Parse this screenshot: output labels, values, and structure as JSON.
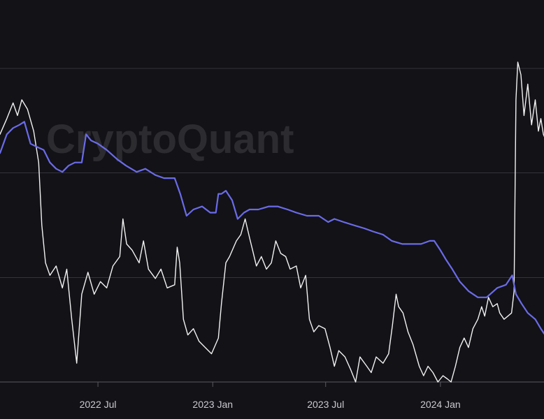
{
  "watermark": "CryptoQuant",
  "colors": {
    "background": "#121217",
    "grid": "#33333a",
    "axis": "#5a5a62",
    "price_line": "#f2f2f2",
    "metric_line": "#6b6bea"
  },
  "chart_data": {
    "type": "line",
    "title": "",
    "xlabel": "",
    "ylabel": "",
    "x_axis": {
      "type": "date",
      "range": [
        "2022-01-25",
        "2024-06-15"
      ],
      "tick_labels": [
        "2022 Jul",
        "2023 Jan",
        "2023 Jul",
        "2024 Jan"
      ],
      "tick_dates": [
        "2022-07-01",
        "2023-01-01",
        "2023-07-01",
        "2024-01-01"
      ]
    },
    "y_axis": {
      "visible_labels": false,
      "range": [
        0,
        100
      ],
      "gridlines": [
        33.3,
        66.7,
        100
      ]
    },
    "grid": true,
    "legend": "none",
    "series": [
      {
        "key": "price",
        "color": "#f2f2f2",
        "points": [
          [
            "2022-01-25",
            79
          ],
          [
            "2022-02-05",
            84
          ],
          [
            "2022-02-15",
            89
          ],
          [
            "2022-02-22",
            85
          ],
          [
            "2022-03-01",
            90
          ],
          [
            "2022-03-10",
            87
          ],
          [
            "2022-03-20",
            80
          ],
          [
            "2022-03-28",
            70
          ],
          [
            "2022-04-02",
            50
          ],
          [
            "2022-04-08",
            38
          ],
          [
            "2022-04-15",
            34
          ],
          [
            "2022-04-25",
            37
          ],
          [
            "2022-05-05",
            30
          ],
          [
            "2022-05-12",
            36
          ],
          [
            "2022-05-20",
            20
          ],
          [
            "2022-05-28",
            6
          ],
          [
            "2022-06-05",
            28
          ],
          [
            "2022-06-15",
            35
          ],
          [
            "2022-06-25",
            28
          ],
          [
            "2022-07-05",
            32
          ],
          [
            "2022-07-15",
            30
          ],
          [
            "2022-07-25",
            37
          ],
          [
            "2022-08-05",
            40
          ],
          [
            "2022-08-10",
            52
          ],
          [
            "2022-08-16",
            44
          ],
          [
            "2022-08-25",
            42
          ],
          [
            "2022-09-05",
            38
          ],
          [
            "2022-09-12",
            45
          ],
          [
            "2022-09-20",
            36
          ],
          [
            "2022-10-01",
            33
          ],
          [
            "2022-10-10",
            36
          ],
          [
            "2022-10-20",
            30
          ],
          [
            "2022-11-01",
            31
          ],
          [
            "2022-11-05",
            43
          ],
          [
            "2022-11-09",
            38
          ],
          [
            "2022-11-15",
            20
          ],
          [
            "2022-11-22",
            15
          ],
          [
            "2022-12-01",
            17
          ],
          [
            "2022-12-10",
            13
          ],
          [
            "2022-12-20",
            11
          ],
          [
            "2022-12-30",
            9
          ],
          [
            "2023-01-10",
            14
          ],
          [
            "2023-01-15",
            25
          ],
          [
            "2023-01-22",
            38
          ],
          [
            "2023-01-28",
            40
          ],
          [
            "2023-02-08",
            45
          ],
          [
            "2023-02-15",
            47
          ],
          [
            "2023-02-22",
            52
          ],
          [
            "2023-03-01",
            46
          ],
          [
            "2023-03-06",
            42
          ],
          [
            "2023-03-12",
            37
          ],
          [
            "2023-03-20",
            40
          ],
          [
            "2023-03-28",
            36
          ],
          [
            "2023-04-05",
            38
          ],
          [
            "2023-04-12",
            45
          ],
          [
            "2023-04-20",
            41
          ],
          [
            "2023-04-28",
            40
          ],
          [
            "2023-05-05",
            36
          ],
          [
            "2023-05-15",
            37
          ],
          [
            "2023-05-22",
            30
          ],
          [
            "2023-05-30",
            34
          ],
          [
            "2023-06-05",
            20
          ],
          [
            "2023-06-12",
            16
          ],
          [
            "2023-06-20",
            18
          ],
          [
            "2023-06-30",
            17
          ],
          [
            "2023-07-08",
            11
          ],
          [
            "2023-07-15",
            5
          ],
          [
            "2023-07-22",
            10
          ],
          [
            "2023-08-01",
            8
          ],
          [
            "2023-08-10",
            4
          ],
          [
            "2023-08-18",
            0
          ],
          [
            "2023-08-25",
            8
          ],
          [
            "2023-09-05",
            5
          ],
          [
            "2023-09-12",
            3
          ],
          [
            "2023-09-20",
            8
          ],
          [
            "2023-10-01",
            6
          ],
          [
            "2023-10-10",
            9
          ],
          [
            "2023-10-16",
            18
          ],
          [
            "2023-10-22",
            28
          ],
          [
            "2023-10-26",
            24
          ],
          [
            "2023-11-02",
            22
          ],
          [
            "2023-11-10",
            16
          ],
          [
            "2023-11-18",
            12
          ],
          [
            "2023-11-28",
            5
          ],
          [
            "2023-12-05",
            2
          ],
          [
            "2023-12-12",
            5
          ],
          [
            "2023-12-20",
            3
          ],
          [
            "2023-12-28",
            0
          ],
          [
            "2024-01-05",
            2
          ],
          [
            "2024-01-12",
            1
          ],
          [
            "2024-01-18",
            0
          ],
          [
            "2024-01-25",
            5
          ],
          [
            "2024-02-01",
            11
          ],
          [
            "2024-02-08",
            14
          ],
          [
            "2024-02-15",
            11
          ],
          [
            "2024-02-22",
            17
          ],
          [
            "2024-03-01",
            20
          ],
          [
            "2024-03-07",
            24
          ],
          [
            "2024-03-12",
            21
          ],
          [
            "2024-03-18",
            27
          ],
          [
            "2024-03-25",
            24
          ],
          [
            "2024-04-01",
            25
          ],
          [
            "2024-04-05",
            22
          ],
          [
            "2024-04-12",
            20
          ],
          [
            "2024-04-18",
            21
          ],
          [
            "2024-04-24",
            22
          ],
          [
            "2024-04-28",
            29
          ],
          [
            "2024-05-01",
            90
          ],
          [
            "2024-05-04",
            102
          ],
          [
            "2024-05-09",
            98
          ],
          [
            "2024-05-14",
            85
          ],
          [
            "2024-05-20",
            95
          ],
          [
            "2024-05-26",
            82
          ],
          [
            "2024-06-01",
            90
          ],
          [
            "2024-06-06",
            80
          ],
          [
            "2024-06-10",
            84
          ],
          [
            "2024-06-14",
            79
          ],
          [
            "2024-06-18",
            77
          ],
          [
            "2024-06-24",
            82
          ],
          [
            "2024-06-30",
            78
          ],
          [
            "2024-07-06",
            80
          ],
          [
            "2024-07-12",
            77
          ],
          [
            "2024-07-16",
            78
          ]
        ]
      },
      {
        "key": "metric",
        "color": "#6b6bea",
        "points": [
          [
            "2022-01-25",
            73
          ],
          [
            "2022-02-05",
            79
          ],
          [
            "2022-02-15",
            81
          ],
          [
            "2022-02-25",
            82
          ],
          [
            "2022-03-05",
            83
          ],
          [
            "2022-03-15",
            76
          ],
          [
            "2022-03-25",
            75
          ],
          [
            "2022-04-05",
            74
          ],
          [
            "2022-04-15",
            70
          ],
          [
            "2022-04-25",
            68
          ],
          [
            "2022-05-05",
            67
          ],
          [
            "2022-05-15",
            69
          ],
          [
            "2022-05-25",
            70
          ],
          [
            "2022-06-05",
            70
          ],
          [
            "2022-06-12",
            79
          ],
          [
            "2022-06-20",
            77
          ],
          [
            "2022-07-01",
            76
          ],
          [
            "2022-07-15",
            74
          ],
          [
            "2022-08-01",
            71
          ],
          [
            "2022-08-15",
            69
          ],
          [
            "2022-09-01",
            67
          ],
          [
            "2022-09-15",
            68
          ],
          [
            "2022-10-01",
            66
          ],
          [
            "2022-10-15",
            65
          ],
          [
            "2022-11-01",
            65
          ],
          [
            "2022-11-10",
            60
          ],
          [
            "2022-11-20",
            53
          ],
          [
            "2022-12-01",
            55
          ],
          [
            "2022-12-15",
            56
          ],
          [
            "2022-12-28",
            54
          ],
          [
            "2023-01-06",
            54
          ],
          [
            "2023-01-10",
            60
          ],
          [
            "2023-01-15",
            60
          ],
          [
            "2023-01-22",
            61
          ],
          [
            "2023-02-01",
            58
          ],
          [
            "2023-02-10",
            52
          ],
          [
            "2023-02-20",
            54
          ],
          [
            "2023-03-01",
            55
          ],
          [
            "2023-03-15",
            55
          ],
          [
            "2023-04-01",
            56
          ],
          [
            "2023-04-15",
            56
          ],
          [
            "2023-05-01",
            55
          ],
          [
            "2023-05-15",
            54
          ],
          [
            "2023-06-01",
            53
          ],
          [
            "2023-06-20",
            53
          ],
          [
            "2023-07-05",
            51
          ],
          [
            "2023-07-15",
            52
          ],
          [
            "2023-07-30",
            51
          ],
          [
            "2023-08-15",
            50
          ],
          [
            "2023-09-01",
            49
          ],
          [
            "2023-09-15",
            48
          ],
          [
            "2023-10-01",
            47
          ],
          [
            "2023-10-15",
            45
          ],
          [
            "2023-11-01",
            44
          ],
          [
            "2023-11-15",
            44
          ],
          [
            "2023-12-01",
            44
          ],
          [
            "2023-12-15",
            45
          ],
          [
            "2023-12-22",
            45
          ],
          [
            "2024-01-01",
            42
          ],
          [
            "2024-01-10",
            39
          ],
          [
            "2024-01-20",
            36
          ],
          [
            "2024-02-01",
            32
          ],
          [
            "2024-02-15",
            29
          ],
          [
            "2024-03-01",
            27
          ],
          [
            "2024-03-15",
            27
          ],
          [
            "2024-04-01",
            30
          ],
          [
            "2024-04-15",
            31
          ],
          [
            "2024-04-25",
            34
          ],
          [
            "2024-05-01",
            28
          ],
          [
            "2024-05-10",
            25
          ],
          [
            "2024-05-20",
            22
          ],
          [
            "2024-06-01",
            20
          ],
          [
            "2024-06-10",
            17
          ],
          [
            "2024-06-20",
            14
          ],
          [
            "2024-06-25",
            11
          ]
        ]
      }
    ]
  }
}
